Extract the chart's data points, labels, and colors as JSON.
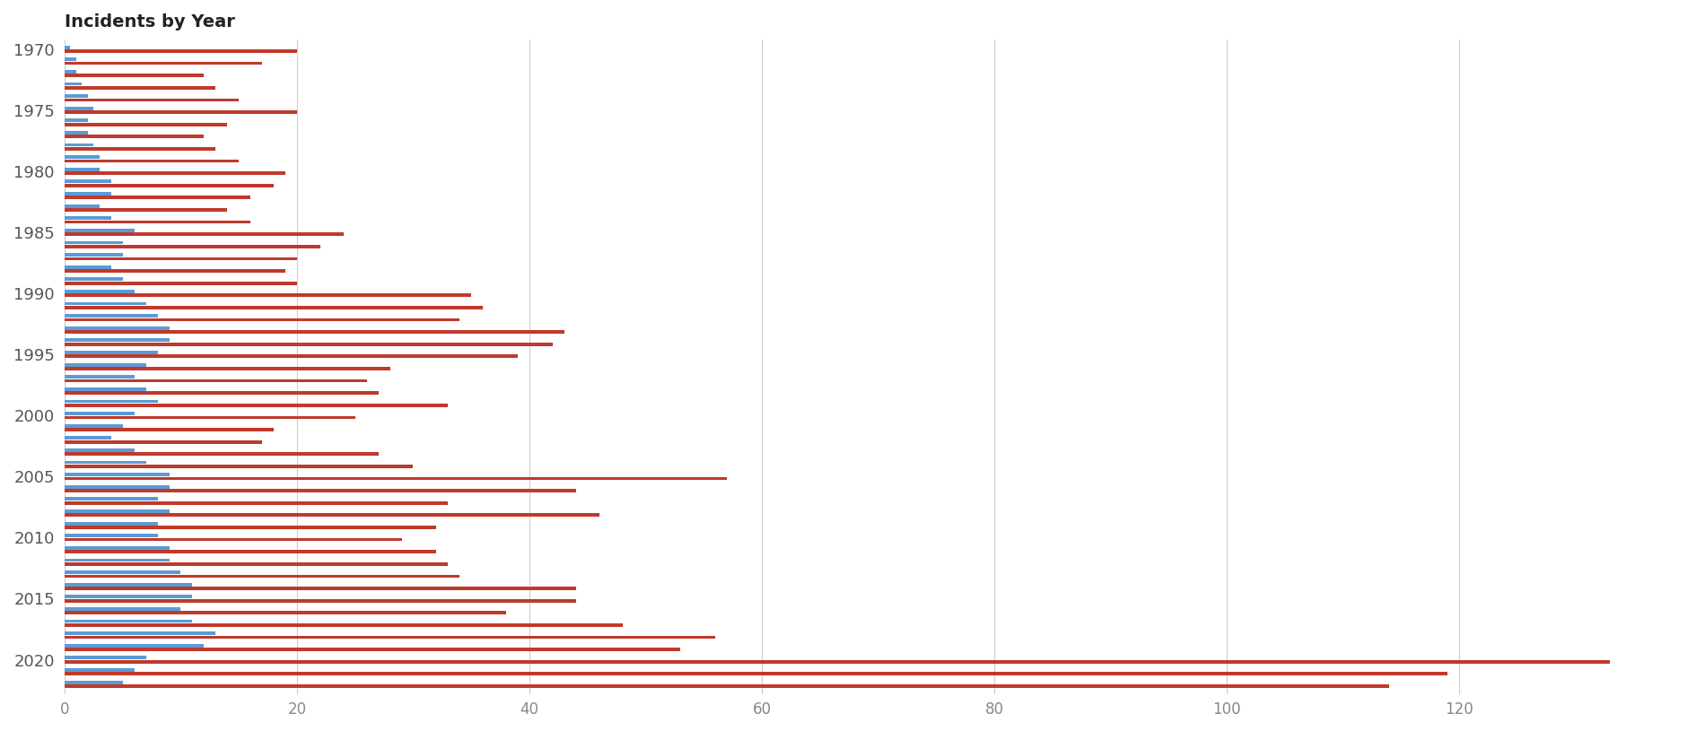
{
  "title": "Incidents by Year",
  "bar_color_red": "#c0392b",
  "bar_color_blue": "#5b9bd5",
  "background_color": "#ffffff",
  "grid_color": "#cccccc",
  "xlim": [
    0,
    140
  ],
  "xticks": [
    0,
    20,
    40,
    60,
    80,
    100,
    120
  ],
  "years": [
    1970,
    1971,
    1972,
    1973,
    1974,
    1975,
    1976,
    1977,
    1978,
    1979,
    1980,
    1981,
    1982,
    1983,
    1984,
    1985,
    1986,
    1987,
    1988,
    1989,
    1990,
    1991,
    1992,
    1993,
    1994,
    1995,
    1996,
    1997,
    1998,
    1999,
    2000,
    2001,
    2002,
    2003,
    2004,
    2005,
    2006,
    2007,
    2008,
    2009,
    2010,
    2011,
    2012,
    2013,
    2014,
    2015,
    2016,
    2017,
    2018,
    2019,
    2020,
    2021,
    2022
  ],
  "red_values": [
    20,
    17,
    12,
    13,
    15,
    20,
    14,
    12,
    13,
    15,
    19,
    18,
    16,
    14,
    16,
    24,
    22,
    20,
    19,
    20,
    35,
    36,
    34,
    43,
    42,
    39,
    28,
    26,
    27,
    33,
    25,
    18,
    17,
    27,
    30,
    57,
    44,
    33,
    46,
    32,
    29,
    32,
    33,
    34,
    44,
    44,
    38,
    48,
    56,
    53,
    133,
    119,
    114
  ],
  "blue_values": [
    0.5,
    1,
    1,
    1.5,
    2,
    2.5,
    2,
    2,
    2.5,
    3,
    3,
    4,
    4,
    3,
    4,
    6,
    5,
    5,
    4,
    5,
    6,
    7,
    8,
    9,
    9,
    8,
    7,
    6,
    7,
    8,
    6,
    5,
    4,
    6,
    7,
    9,
    9,
    8,
    9,
    8,
    8,
    9,
    9,
    10,
    11,
    11,
    10,
    11,
    13,
    12,
    7,
    6,
    5
  ]
}
